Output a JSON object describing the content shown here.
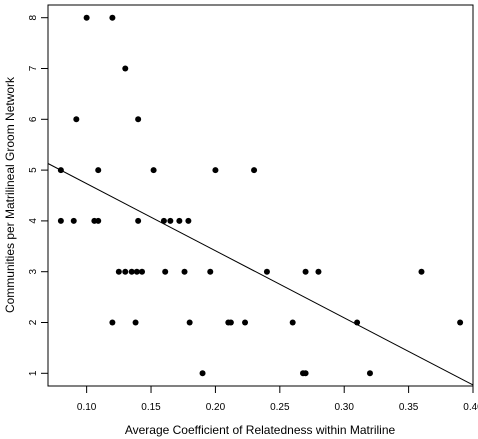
{
  "chart_data": {
    "type": "scatter",
    "title": "",
    "xlabel": "Average Coefficient of Relatedness within Matriline",
    "ylabel": "Communities per Matrilineal Groom Network",
    "xlim": [
      0.07,
      0.4
    ],
    "ylim": [
      0.75,
      8.25
    ],
    "x_ticks": [
      "0.10",
      "0.15",
      "0.20",
      "0.25",
      "0.30",
      "0.35",
      "0.40"
    ],
    "y_ticks": [
      "1",
      "2",
      "3",
      "4",
      "5",
      "6",
      "7",
      "8"
    ],
    "grid": false,
    "legend": "none",
    "point_color": "#000000",
    "line_color": "#000000",
    "points": [
      {
        "x": 0.08,
        "y": 5
      },
      {
        "x": 0.08,
        "y": 4
      },
      {
        "x": 0.09,
        "y": 4
      },
      {
        "x": 0.092,
        "y": 6
      },
      {
        "x": 0.1,
        "y": 8
      },
      {
        "x": 0.106,
        "y": 4
      },
      {
        "x": 0.109,
        "y": 5
      },
      {
        "x": 0.109,
        "y": 4
      },
      {
        "x": 0.12,
        "y": 8
      },
      {
        "x": 0.12,
        "y": 2
      },
      {
        "x": 0.125,
        "y": 3
      },
      {
        "x": 0.13,
        "y": 7
      },
      {
        "x": 0.13,
        "y": 3
      },
      {
        "x": 0.135,
        "y": 3
      },
      {
        "x": 0.138,
        "y": 2
      },
      {
        "x": 0.139,
        "y": 3
      },
      {
        "x": 0.14,
        "y": 6
      },
      {
        "x": 0.14,
        "y": 4
      },
      {
        "x": 0.143,
        "y": 3
      },
      {
        "x": 0.152,
        "y": 5
      },
      {
        "x": 0.16,
        "y": 4
      },
      {
        "x": 0.161,
        "y": 3
      },
      {
        "x": 0.165,
        "y": 4
      },
      {
        "x": 0.172,
        "y": 4
      },
      {
        "x": 0.176,
        "y": 3
      },
      {
        "x": 0.179,
        "y": 4
      },
      {
        "x": 0.18,
        "y": 2
      },
      {
        "x": 0.19,
        "y": 1
      },
      {
        "x": 0.196,
        "y": 3
      },
      {
        "x": 0.2,
        "y": 5
      },
      {
        "x": 0.21,
        "y": 2
      },
      {
        "x": 0.212,
        "y": 2
      },
      {
        "x": 0.223,
        "y": 2
      },
      {
        "x": 0.23,
        "y": 5
      },
      {
        "x": 0.24,
        "y": 3
      },
      {
        "x": 0.26,
        "y": 2
      },
      {
        "x": 0.268,
        "y": 1
      },
      {
        "x": 0.27,
        "y": 1
      },
      {
        "x": 0.27,
        "y": 3
      },
      {
        "x": 0.28,
        "y": 3
      },
      {
        "x": 0.31,
        "y": 2
      },
      {
        "x": 0.32,
        "y": 1
      },
      {
        "x": 0.36,
        "y": 3
      },
      {
        "x": 0.39,
        "y": 2
      }
    ],
    "trend_line": {
      "x": [
        0.07,
        0.4
      ],
      "y": [
        5.13,
        0.77
      ]
    }
  }
}
